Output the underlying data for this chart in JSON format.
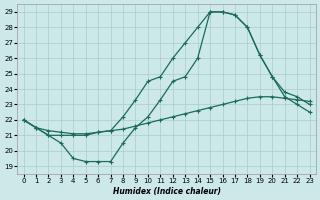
{
  "xlabel": "Humidex (Indice chaleur)",
  "ylabel": "",
  "bg_color": "#cce8e8",
  "grid_color": "#aacccc",
  "line_color": "#1a6b5a",
  "x_ticks": [
    0,
    1,
    2,
    3,
    4,
    5,
    6,
    7,
    8,
    9,
    10,
    11,
    12,
    13,
    14,
    15,
    16,
    17,
    18,
    19,
    20,
    21,
    22,
    23
  ],
  "y_ticks": [
    19,
    20,
    21,
    22,
    23,
    24,
    25,
    26,
    27,
    28,
    29
  ],
  "xlim": [
    -0.5,
    23.5
  ],
  "ylim": [
    18.5,
    29.5
  ],
  "curve_top": {
    "x": [
      0,
      1,
      2,
      3,
      4,
      5,
      6,
      7,
      8,
      9,
      10,
      11,
      12,
      13,
      14,
      15,
      16,
      17,
      18,
      19,
      20,
      21,
      22,
      23
    ],
    "y": [
      22.0,
      21.5,
      21.0,
      21.0,
      21.0,
      21.0,
      21.2,
      21.3,
      22.2,
      23.3,
      24.5,
      24.8,
      26.0,
      27.0,
      28.0,
      29.0,
      29.0,
      28.8,
      28.0,
      26.2,
      24.8,
      23.8,
      23.5,
      23.0
    ]
  },
  "curve_mid": {
    "x": [
      0,
      1,
      2,
      3,
      4,
      5,
      6,
      7,
      8,
      9,
      10,
      11,
      12,
      13,
      14,
      15,
      16,
      17,
      18,
      19,
      20,
      21,
      22,
      23
    ],
    "y": [
      22.0,
      21.5,
      21.3,
      21.2,
      21.1,
      21.1,
      21.2,
      21.3,
      21.4,
      21.6,
      21.8,
      22.0,
      22.2,
      22.4,
      22.6,
      22.8,
      23.0,
      23.2,
      23.4,
      23.5,
      23.5,
      23.4,
      23.3,
      23.2
    ]
  },
  "curve_bot": {
    "x": [
      0,
      1,
      2,
      3,
      4,
      5,
      6,
      7,
      8,
      9,
      10,
      11,
      12,
      13,
      14,
      15,
      16,
      17,
      18,
      19,
      20,
      21,
      22,
      23
    ],
    "y": [
      22.0,
      21.5,
      21.0,
      20.5,
      19.5,
      19.3,
      19.3,
      19.3,
      20.5,
      21.5,
      22.2,
      23.3,
      24.5,
      24.8,
      26.0,
      29.0,
      29.0,
      28.8,
      28.0,
      26.2,
      24.8,
      23.5,
      23.0,
      22.5
    ]
  }
}
